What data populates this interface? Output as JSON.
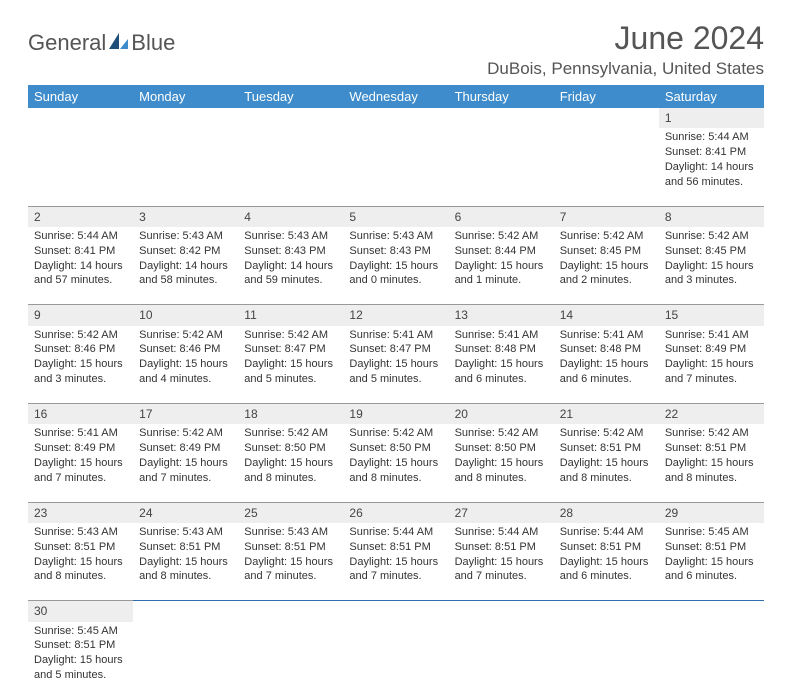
{
  "brand": {
    "name_a": "General",
    "name_b": "Blue"
  },
  "title": "June 2024",
  "location": "DuBois, Pennsylvania, United States",
  "colors": {
    "header_bg": "#3e8ccc",
    "header_text": "#ffffff",
    "daynum_bg": "#eeeeee",
    "row_divider": "#2f6faf",
    "text": "#333333",
    "title_text": "#555555"
  },
  "weekdays": [
    "Sunday",
    "Monday",
    "Tuesday",
    "Wednesday",
    "Thursday",
    "Friday",
    "Saturday"
  ],
  "weeks": [
    [
      null,
      null,
      null,
      null,
      null,
      null,
      {
        "d": "1",
        "sr": "Sunrise: 5:44 AM",
        "ss": "Sunset: 8:41 PM",
        "dl": "Daylight: 14 hours and 56 minutes."
      }
    ],
    [
      {
        "d": "2",
        "sr": "Sunrise: 5:44 AM",
        "ss": "Sunset: 8:41 PM",
        "dl": "Daylight: 14 hours and 57 minutes."
      },
      {
        "d": "3",
        "sr": "Sunrise: 5:43 AM",
        "ss": "Sunset: 8:42 PM",
        "dl": "Daylight: 14 hours and 58 minutes."
      },
      {
        "d": "4",
        "sr": "Sunrise: 5:43 AM",
        "ss": "Sunset: 8:43 PM",
        "dl": "Daylight: 14 hours and 59 minutes."
      },
      {
        "d": "5",
        "sr": "Sunrise: 5:43 AM",
        "ss": "Sunset: 8:43 PM",
        "dl": "Daylight: 15 hours and 0 minutes."
      },
      {
        "d": "6",
        "sr": "Sunrise: 5:42 AM",
        "ss": "Sunset: 8:44 PM",
        "dl": "Daylight: 15 hours and 1 minute."
      },
      {
        "d": "7",
        "sr": "Sunrise: 5:42 AM",
        "ss": "Sunset: 8:45 PM",
        "dl": "Daylight: 15 hours and 2 minutes."
      },
      {
        "d": "8",
        "sr": "Sunrise: 5:42 AM",
        "ss": "Sunset: 8:45 PM",
        "dl": "Daylight: 15 hours and 3 minutes."
      }
    ],
    [
      {
        "d": "9",
        "sr": "Sunrise: 5:42 AM",
        "ss": "Sunset: 8:46 PM",
        "dl": "Daylight: 15 hours and 3 minutes."
      },
      {
        "d": "10",
        "sr": "Sunrise: 5:42 AM",
        "ss": "Sunset: 8:46 PM",
        "dl": "Daylight: 15 hours and 4 minutes."
      },
      {
        "d": "11",
        "sr": "Sunrise: 5:42 AM",
        "ss": "Sunset: 8:47 PM",
        "dl": "Daylight: 15 hours and 5 minutes."
      },
      {
        "d": "12",
        "sr": "Sunrise: 5:41 AM",
        "ss": "Sunset: 8:47 PM",
        "dl": "Daylight: 15 hours and 5 minutes."
      },
      {
        "d": "13",
        "sr": "Sunrise: 5:41 AM",
        "ss": "Sunset: 8:48 PM",
        "dl": "Daylight: 15 hours and 6 minutes."
      },
      {
        "d": "14",
        "sr": "Sunrise: 5:41 AM",
        "ss": "Sunset: 8:48 PM",
        "dl": "Daylight: 15 hours and 6 minutes."
      },
      {
        "d": "15",
        "sr": "Sunrise: 5:41 AM",
        "ss": "Sunset: 8:49 PM",
        "dl": "Daylight: 15 hours and 7 minutes."
      }
    ],
    [
      {
        "d": "16",
        "sr": "Sunrise: 5:41 AM",
        "ss": "Sunset: 8:49 PM",
        "dl": "Daylight: 15 hours and 7 minutes."
      },
      {
        "d": "17",
        "sr": "Sunrise: 5:42 AM",
        "ss": "Sunset: 8:49 PM",
        "dl": "Daylight: 15 hours and 7 minutes."
      },
      {
        "d": "18",
        "sr": "Sunrise: 5:42 AM",
        "ss": "Sunset: 8:50 PM",
        "dl": "Daylight: 15 hours and 8 minutes."
      },
      {
        "d": "19",
        "sr": "Sunrise: 5:42 AM",
        "ss": "Sunset: 8:50 PM",
        "dl": "Daylight: 15 hours and 8 minutes."
      },
      {
        "d": "20",
        "sr": "Sunrise: 5:42 AM",
        "ss": "Sunset: 8:50 PM",
        "dl": "Daylight: 15 hours and 8 minutes."
      },
      {
        "d": "21",
        "sr": "Sunrise: 5:42 AM",
        "ss": "Sunset: 8:51 PM",
        "dl": "Daylight: 15 hours and 8 minutes."
      },
      {
        "d": "22",
        "sr": "Sunrise: 5:42 AM",
        "ss": "Sunset: 8:51 PM",
        "dl": "Daylight: 15 hours and 8 minutes."
      }
    ],
    [
      {
        "d": "23",
        "sr": "Sunrise: 5:43 AM",
        "ss": "Sunset: 8:51 PM",
        "dl": "Daylight: 15 hours and 8 minutes."
      },
      {
        "d": "24",
        "sr": "Sunrise: 5:43 AM",
        "ss": "Sunset: 8:51 PM",
        "dl": "Daylight: 15 hours and 8 minutes."
      },
      {
        "d": "25",
        "sr": "Sunrise: 5:43 AM",
        "ss": "Sunset: 8:51 PM",
        "dl": "Daylight: 15 hours and 7 minutes."
      },
      {
        "d": "26",
        "sr": "Sunrise: 5:44 AM",
        "ss": "Sunset: 8:51 PM",
        "dl": "Daylight: 15 hours and 7 minutes."
      },
      {
        "d": "27",
        "sr": "Sunrise: 5:44 AM",
        "ss": "Sunset: 8:51 PM",
        "dl": "Daylight: 15 hours and 7 minutes."
      },
      {
        "d": "28",
        "sr": "Sunrise: 5:44 AM",
        "ss": "Sunset: 8:51 PM",
        "dl": "Daylight: 15 hours and 6 minutes."
      },
      {
        "d": "29",
        "sr": "Sunrise: 5:45 AM",
        "ss": "Sunset: 8:51 PM",
        "dl": "Daylight: 15 hours and 6 minutes."
      }
    ],
    [
      {
        "d": "30",
        "sr": "Sunrise: 5:45 AM",
        "ss": "Sunset: 8:51 PM",
        "dl": "Daylight: 15 hours and 5 minutes."
      },
      null,
      null,
      null,
      null,
      null,
      null
    ]
  ]
}
